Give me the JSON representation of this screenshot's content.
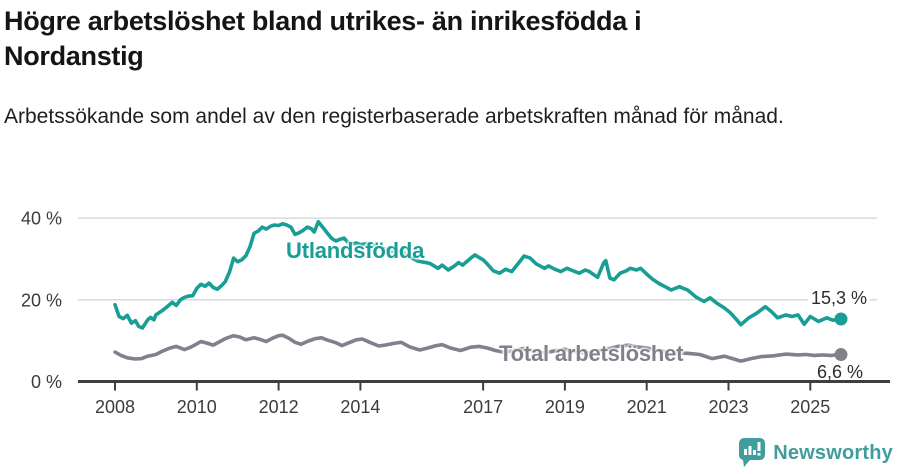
{
  "chart_data": {
    "type": "line",
    "title": "Högre arbetslöshet bland utrikes- än inrikesfödda i Nordanstig",
    "subtitle": "Arbetssökande som andel av den registerbaserade arbetskraften månad för månad.",
    "unit": "%",
    "xlim": [
      2007.6,
      2026.4
    ],
    "ylim": [
      0,
      42
    ],
    "grid": "horizontal",
    "x_ticks": [
      {
        "year": 2008,
        "label": "2008"
      },
      {
        "year": 2010,
        "label": "2010"
      },
      {
        "year": 2012,
        "label": "2012"
      },
      {
        "year": 2014,
        "label": "2014"
      },
      {
        "year": 2017,
        "label": "2017"
      },
      {
        "year": 2019,
        "label": "2019"
      },
      {
        "year": 2021,
        "label": "2021"
      },
      {
        "year": 2023,
        "label": "2023"
      },
      {
        "year": 2025,
        "label": "2025"
      }
    ],
    "y_ticks": [
      {
        "value": 0,
        "label": "0 %"
      },
      {
        "value": 20,
        "label": "20 %"
      },
      {
        "value": 40,
        "label": "40 %"
      }
    ],
    "series": [
      {
        "name": "Utlandsfödda",
        "color": "#199e96",
        "end_label": "15,3 %",
        "end_value": 15.3,
        "points": [
          [
            2008.0,
            18.8
          ],
          [
            2008.1,
            15.9
          ],
          [
            2008.2,
            15.4
          ],
          [
            2008.3,
            16.2
          ],
          [
            2008.4,
            14.3
          ],
          [
            2008.5,
            14.9
          ],
          [
            2008.58,
            13.5
          ],
          [
            2008.67,
            13.1
          ],
          [
            2008.8,
            15.1
          ],
          [
            2008.87,
            15.7
          ],
          [
            2008.95,
            15.1
          ],
          [
            2009.0,
            16.3
          ],
          [
            2009.15,
            17.3
          ],
          [
            2009.25,
            18.1
          ],
          [
            2009.4,
            19.4
          ],
          [
            2009.5,
            18.6
          ],
          [
            2009.6,
            20.0
          ],
          [
            2009.7,
            20.6
          ],
          [
            2009.8,
            20.9
          ],
          [
            2009.9,
            21.0
          ],
          [
            2010.0,
            22.8
          ],
          [
            2010.1,
            23.8
          ],
          [
            2010.2,
            23.3
          ],
          [
            2010.3,
            24.1
          ],
          [
            2010.4,
            23.0
          ],
          [
            2010.5,
            22.6
          ],
          [
            2010.6,
            23.4
          ],
          [
            2010.7,
            24.5
          ],
          [
            2010.8,
            26.8
          ],
          [
            2010.9,
            30.2
          ],
          [
            2011.0,
            29.3
          ],
          [
            2011.1,
            29.8
          ],
          [
            2011.2,
            30.8
          ],
          [
            2011.3,
            33.0
          ],
          [
            2011.4,
            36.3
          ],
          [
            2011.5,
            36.8
          ],
          [
            2011.6,
            37.8
          ],
          [
            2011.7,
            37.3
          ],
          [
            2011.8,
            38.0
          ],
          [
            2011.9,
            38.3
          ],
          [
            2012.0,
            38.2
          ],
          [
            2012.1,
            38.6
          ],
          [
            2012.2,
            38.3
          ],
          [
            2012.3,
            37.8
          ],
          [
            2012.4,
            36.0
          ],
          [
            2012.5,
            36.4
          ],
          [
            2012.6,
            37.0
          ],
          [
            2012.7,
            37.8
          ],
          [
            2012.8,
            37.4
          ],
          [
            2012.87,
            36.6
          ],
          [
            2012.97,
            39.1
          ],
          [
            2013.1,
            37.5
          ],
          [
            2013.2,
            36.2
          ],
          [
            2013.3,
            35.0
          ],
          [
            2013.4,
            34.4
          ],
          [
            2013.5,
            34.8
          ],
          [
            2013.6,
            35.1
          ],
          [
            2013.7,
            34.0
          ],
          [
            2013.8,
            33.6
          ],
          [
            2013.9,
            33.9
          ],
          [
            2014.0,
            33.5
          ],
          [
            2014.2,
            33.8
          ],
          [
            2014.4,
            33.0
          ],
          [
            2014.6,
            32.4
          ],
          [
            2014.8,
            31.8
          ],
          [
            2015.0,
            31.9
          ],
          [
            2015.2,
            30.5
          ],
          [
            2015.4,
            29.5
          ],
          [
            2015.55,
            29.2
          ],
          [
            2015.7,
            28.9
          ],
          [
            2015.9,
            27.7
          ],
          [
            2016.0,
            28.5
          ],
          [
            2016.15,
            27.3
          ],
          [
            2016.3,
            28.3
          ],
          [
            2016.4,
            29.1
          ],
          [
            2016.5,
            28.5
          ],
          [
            2016.7,
            30.2
          ],
          [
            2016.8,
            31.0
          ],
          [
            2017.0,
            29.8
          ],
          [
            2017.1,
            28.8
          ],
          [
            2017.25,
            27.1
          ],
          [
            2017.4,
            26.5
          ],
          [
            2017.55,
            27.5
          ],
          [
            2017.7,
            26.9
          ],
          [
            2017.85,
            28.8
          ],
          [
            2018.0,
            30.7
          ],
          [
            2018.15,
            30.2
          ],
          [
            2018.3,
            28.8
          ],
          [
            2018.5,
            27.7
          ],
          [
            2018.6,
            28.3
          ],
          [
            2018.75,
            27.5
          ],
          [
            2018.9,
            26.9
          ],
          [
            2019.05,
            27.7
          ],
          [
            2019.2,
            27.1
          ],
          [
            2019.35,
            26.5
          ],
          [
            2019.5,
            27.3
          ],
          [
            2019.6,
            26.9
          ],
          [
            2019.8,
            25.5
          ],
          [
            2019.95,
            29.1
          ],
          [
            2020.0,
            29.6
          ],
          [
            2020.1,
            25.3
          ],
          [
            2020.2,
            24.9
          ],
          [
            2020.35,
            26.5
          ],
          [
            2020.5,
            27.1
          ],
          [
            2020.6,
            27.7
          ],
          [
            2020.75,
            27.3
          ],
          [
            2020.85,
            27.7
          ],
          [
            2021.0,
            26.3
          ],
          [
            2021.15,
            25.0
          ],
          [
            2021.3,
            24.0
          ],
          [
            2021.45,
            23.2
          ],
          [
            2021.6,
            22.4
          ],
          [
            2021.8,
            23.2
          ],
          [
            2021.9,
            22.8
          ],
          [
            2022.0,
            22.4
          ],
          [
            2022.2,
            20.7
          ],
          [
            2022.4,
            19.6
          ],
          [
            2022.55,
            20.5
          ],
          [
            2022.7,
            19.3
          ],
          [
            2022.9,
            18.0
          ],
          [
            2023.05,
            16.8
          ],
          [
            2023.2,
            15.1
          ],
          [
            2023.3,
            13.9
          ],
          [
            2023.5,
            15.6
          ],
          [
            2023.7,
            16.8
          ],
          [
            2023.9,
            18.3
          ],
          [
            2024.05,
            17.1
          ],
          [
            2024.2,
            15.6
          ],
          [
            2024.4,
            16.3
          ],
          [
            2024.55,
            15.9
          ],
          [
            2024.7,
            16.3
          ],
          [
            2024.85,
            14.0
          ],
          [
            2025.0,
            15.9
          ],
          [
            2025.2,
            14.7
          ],
          [
            2025.4,
            15.6
          ],
          [
            2025.55,
            15.0
          ],
          [
            2025.75,
            15.3
          ]
        ]
      },
      {
        "name": "Total arbetslöshet",
        "color": "#80818a",
        "end_label": "6,6 %",
        "end_value": 6.6,
        "points": [
          [
            2008.0,
            7.2
          ],
          [
            2008.15,
            6.4
          ],
          [
            2008.3,
            5.8
          ],
          [
            2008.5,
            5.5
          ],
          [
            2008.65,
            5.6
          ],
          [
            2008.8,
            6.2
          ],
          [
            2009.0,
            6.6
          ],
          [
            2009.15,
            7.4
          ],
          [
            2009.35,
            8.2
          ],
          [
            2009.5,
            8.6
          ],
          [
            2009.7,
            7.8
          ],
          [
            2009.85,
            8.4
          ],
          [
            2010.0,
            9.2
          ],
          [
            2010.1,
            9.8
          ],
          [
            2010.25,
            9.4
          ],
          [
            2010.4,
            8.9
          ],
          [
            2010.55,
            9.7
          ],
          [
            2010.7,
            10.5
          ],
          [
            2010.9,
            11.2
          ],
          [
            2011.05,
            10.9
          ],
          [
            2011.2,
            10.2
          ],
          [
            2011.4,
            10.7
          ],
          [
            2011.55,
            10.3
          ],
          [
            2011.7,
            9.8
          ],
          [
            2011.85,
            10.6
          ],
          [
            2012.0,
            11.2
          ],
          [
            2012.1,
            11.3
          ],
          [
            2012.25,
            10.6
          ],
          [
            2012.4,
            9.6
          ],
          [
            2012.55,
            9.1
          ],
          [
            2012.7,
            9.8
          ],
          [
            2012.9,
            10.5
          ],
          [
            2013.05,
            10.7
          ],
          [
            2013.2,
            10.1
          ],
          [
            2013.4,
            9.5
          ],
          [
            2013.55,
            8.8
          ],
          [
            2013.7,
            9.4
          ],
          [
            2013.9,
            10.2
          ],
          [
            2014.05,
            10.4
          ],
          [
            2014.25,
            9.5
          ],
          [
            2014.45,
            8.7
          ],
          [
            2014.6,
            8.9
          ],
          [
            2014.85,
            9.4
          ],
          [
            2015.0,
            9.6
          ],
          [
            2015.2,
            8.5
          ],
          [
            2015.45,
            7.7
          ],
          [
            2015.65,
            8.2
          ],
          [
            2015.85,
            8.8
          ],
          [
            2016.0,
            9.0
          ],
          [
            2016.2,
            8.2
          ],
          [
            2016.45,
            7.6
          ],
          [
            2016.7,
            8.4
          ],
          [
            2016.9,
            8.6
          ],
          [
            2017.1,
            8.2
          ],
          [
            2017.3,
            7.6
          ],
          [
            2017.5,
            7.2
          ],
          [
            2017.75,
            7.6
          ],
          [
            2018.0,
            8.1
          ],
          [
            2018.25,
            7.4
          ],
          [
            2018.5,
            7.0
          ],
          [
            2018.75,
            7.5
          ],
          [
            2019.0,
            7.9
          ],
          [
            2019.25,
            7.3
          ],
          [
            2019.5,
            6.9
          ],
          [
            2019.75,
            7.3
          ],
          [
            2020.0,
            7.8
          ],
          [
            2020.3,
            8.6
          ],
          [
            2020.55,
            8.9
          ],
          [
            2020.8,
            8.4
          ],
          [
            2021.0,
            8.2
          ],
          [
            2021.25,
            7.7
          ],
          [
            2021.5,
            7.2
          ],
          [
            2021.75,
            7.0
          ],
          [
            2022.0,
            6.9
          ],
          [
            2022.3,
            6.6
          ],
          [
            2022.6,
            5.6
          ],
          [
            2022.9,
            6.2
          ],
          [
            2023.1,
            5.6
          ],
          [
            2023.3,
            5.0
          ],
          [
            2023.55,
            5.6
          ],
          [
            2023.8,
            6.1
          ],
          [
            2024.1,
            6.3
          ],
          [
            2024.4,
            6.7
          ],
          [
            2024.7,
            6.5
          ],
          [
            2024.9,
            6.6
          ],
          [
            2025.1,
            6.4
          ],
          [
            2025.3,
            6.5
          ],
          [
            2025.5,
            6.4
          ],
          [
            2025.75,
            6.6
          ]
        ]
      }
    ],
    "colors": {
      "axis": "#3f3f3f",
      "gridline": "#d9d9d9",
      "tick_text": "#3c3c3c"
    }
  },
  "footer": {
    "brand": "Newsworthy",
    "brand_color": "#3f9e9d",
    "logo_icon": "newsworthy-speech-bubble-barchart-icon"
  }
}
